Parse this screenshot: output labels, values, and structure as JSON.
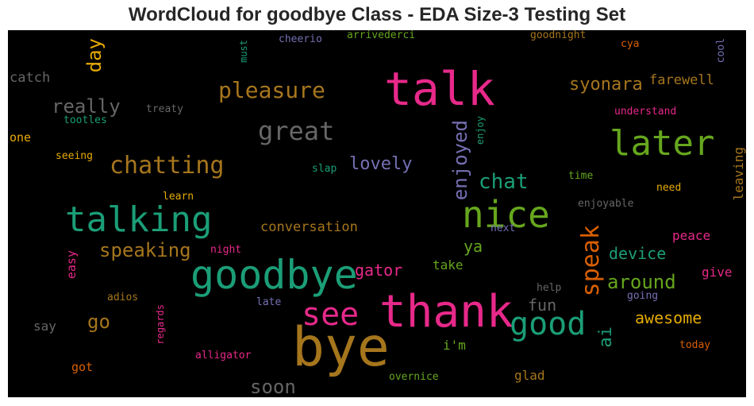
{
  "chart_data": {
    "type": "wordcloud",
    "title": "WordCloud for goodbye Class - EDA Size-3 Testing Set",
    "background": "#000000",
    "words": [
      {
        "text": "bye",
        "color": "#a6761d"
      },
      {
        "text": "goodbye",
        "color": "#1b9e77"
      },
      {
        "text": "thank",
        "color": "#e7298a"
      },
      {
        "text": "talk",
        "color": "#e7298a"
      },
      {
        "text": "nice",
        "color": "#66a61e"
      },
      {
        "text": "talking",
        "color": "#1b9e77"
      },
      {
        "text": "later",
        "color": "#66a61e"
      },
      {
        "text": "good",
        "color": "#1b9e77"
      },
      {
        "text": "see",
        "color": "#e7298a"
      },
      {
        "text": "great",
        "color": "#666666"
      },
      {
        "text": "chatting",
        "color": "#a6761d"
      },
      {
        "text": "speak",
        "color": "#d95f02"
      },
      {
        "text": "pleasure",
        "color": "#a6761d"
      },
      {
        "text": "enjoyed",
        "color": "#7570b3"
      },
      {
        "text": "chat",
        "color": "#1b9e77"
      },
      {
        "text": "speaking",
        "color": "#a6761d"
      },
      {
        "text": "really",
        "color": "#666666"
      },
      {
        "text": "day",
        "color": "#e6ab02"
      },
      {
        "text": "syonara",
        "color": "#a6761d"
      },
      {
        "text": "around",
        "color": "#66a61e"
      },
      {
        "text": "awesome",
        "color": "#e6ab02"
      },
      {
        "text": "lovely",
        "color": "#7570b3"
      },
      {
        "text": "gator",
        "color": "#e7298a"
      },
      {
        "text": "device",
        "color": "#1b9e77"
      },
      {
        "text": "soon",
        "color": "#666666"
      },
      {
        "text": "go",
        "color": "#a6761d"
      },
      {
        "text": "fun",
        "color": "#666666"
      },
      {
        "text": "ai",
        "color": "#1b9e77"
      },
      {
        "text": "conversation",
        "color": "#a6761d"
      },
      {
        "text": "ya",
        "color": "#66a61e"
      },
      {
        "text": "farewell",
        "color": "#a6761d"
      },
      {
        "text": "catch",
        "color": "#666666"
      },
      {
        "text": "peace",
        "color": "#e7298a"
      },
      {
        "text": "give",
        "color": "#e7298a"
      },
      {
        "text": "leaving",
        "color": "#a6761d"
      },
      {
        "text": "glad",
        "color": "#a6761d"
      },
      {
        "text": "take",
        "color": "#66a61e"
      },
      {
        "text": "i'm",
        "color": "#66a61e"
      },
      {
        "text": "easy",
        "color": "#e7298a"
      },
      {
        "text": "say",
        "color": "#666666"
      },
      {
        "text": "got",
        "color": "#d95f02"
      },
      {
        "text": "one",
        "color": "#e6ab02"
      },
      {
        "text": "cheerio",
        "color": "#7570b3"
      },
      {
        "text": "arrivederci",
        "color": "#66a61e"
      },
      {
        "text": "goodnight",
        "color": "#a6761d"
      },
      {
        "text": "cya",
        "color": "#d95f02"
      },
      {
        "text": "cool",
        "color": "#7570b3"
      },
      {
        "text": "must",
        "color": "#1b9e77"
      },
      {
        "text": "tootles",
        "color": "#1b9e77"
      },
      {
        "text": "treaty",
        "color": "#666666"
      },
      {
        "text": "understand",
        "color": "#e7298a"
      },
      {
        "text": "seeing",
        "color": "#e6ab02"
      },
      {
        "text": "enjoy",
        "color": "#1b9e77"
      },
      {
        "text": "slap",
        "color": "#1b9e77"
      },
      {
        "text": "time",
        "color": "#66a61e"
      },
      {
        "text": "learn",
        "color": "#e6ab02"
      },
      {
        "text": "enjoyable",
        "color": "#666666"
      },
      {
        "text": "need",
        "color": "#e6ab02"
      },
      {
        "text": "next",
        "color": "#7570b3"
      },
      {
        "text": "night",
        "color": "#e7298a"
      },
      {
        "text": "help",
        "color": "#666666"
      },
      {
        "text": "going",
        "color": "#7570b3"
      },
      {
        "text": "adios",
        "color": "#a6761d"
      },
      {
        "text": "late",
        "color": "#7570b3"
      },
      {
        "text": "regards",
        "color": "#e7298a"
      },
      {
        "text": "alligator",
        "color": "#e7298a"
      },
      {
        "text": "overnice",
        "color": "#66a61e"
      },
      {
        "text": "today",
        "color": "#d95f02"
      }
    ]
  }
}
